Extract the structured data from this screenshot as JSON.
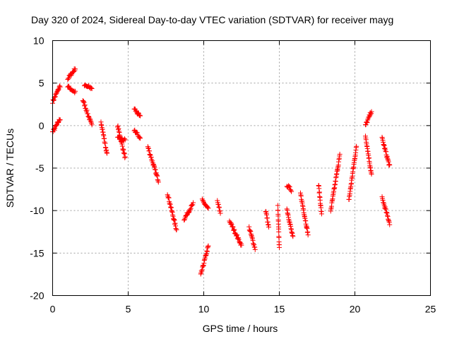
{
  "chart_data": {
    "type": "scatter",
    "title": "Day 320 of 2024, Sidereal Day-to-day VTEC variation (SDTVAR) for receiver mayg",
    "xlabel": "GPS time / hours",
    "ylabel": "SDTVAR / TECUs",
    "xlim": [
      0,
      25
    ],
    "ylim": [
      -20,
      10
    ],
    "xticks": [
      0,
      5,
      10,
      15,
      20,
      25
    ],
    "xtick_labels": [
      "0",
      "5",
      "10",
      "15",
      "20",
      "25"
    ],
    "yticks": [
      10,
      5,
      0,
      -5,
      -10,
      -15,
      -20
    ],
    "ytick_labels": [
      "10",
      "5",
      "0",
      "-5",
      "-10",
      "-15",
      "-20"
    ],
    "grid": true,
    "marker": "+",
    "color": "#ff0000",
    "series": [
      {
        "name": "SDTVAR",
        "segments": [
          {
            "x0": 0.0,
            "x1": 0.5,
            "y0": 2.8,
            "y1": 4.7
          },
          {
            "x0": 0.0,
            "x1": 0.5,
            "y0": -0.8,
            "y1": 0.8
          },
          {
            "x0": 1.0,
            "x1": 1.5,
            "y0": 5.5,
            "y1": 6.7
          },
          {
            "x0": 1.0,
            "x1": 1.5,
            "y0": 4.6,
            "y1": 3.9
          },
          {
            "x0": 2.1,
            "x1": 2.6,
            "y0": 4.7,
            "y1": 4.4
          },
          {
            "x0": 2.0,
            "x1": 2.6,
            "y0": 3.0,
            "y1": 0.0
          },
          {
            "x0": 3.2,
            "x1": 3.6,
            "y0": 0.5,
            "y1": -3.4
          },
          {
            "x0": 4.3,
            "x1": 4.8,
            "y0": 0.0,
            "y1": -3.8
          },
          {
            "x0": 4.3,
            "x1": 4.8,
            "y0": -1.5,
            "y1": -1.7
          },
          {
            "x0": 5.4,
            "x1": 5.8,
            "y0": 2.0,
            "y1": 1.0
          },
          {
            "x0": 5.4,
            "x1": 5.8,
            "y0": -0.5,
            "y1": -1.5
          },
          {
            "x0": 6.3,
            "x1": 7.0,
            "y0": -2.5,
            "y1": -6.5
          },
          {
            "x0": 7.6,
            "x1": 8.2,
            "y0": -8.0,
            "y1": -12.3
          },
          {
            "x0": 8.7,
            "x1": 9.3,
            "y0": -11.0,
            "y1": -9.2
          },
          {
            "x0": 9.9,
            "x1": 10.3,
            "y0": -8.8,
            "y1": -9.8
          },
          {
            "x0": 9.8,
            "x1": 10.3,
            "y0": -17.6,
            "y1": -14.2
          },
          {
            "x0": 10.9,
            "x1": 11.1,
            "y0": -8.9,
            "y1": -10.3
          },
          {
            "x0": 11.7,
            "x1": 12.5,
            "y0": -11.2,
            "y1": -14.1
          },
          {
            "x0": 13.0,
            "x1": 13.4,
            "y0": -12.0,
            "y1": -14.5
          },
          {
            "x0": 14.1,
            "x1": 14.3,
            "y0": -10.0,
            "y1": -12.0
          },
          {
            "x0": 14.9,
            "x1": 15.0,
            "y0": -9.5,
            "y1": -14.5
          },
          {
            "x0": 15.5,
            "x1": 15.8,
            "y0": -7.0,
            "y1": -7.6
          },
          {
            "x0": 15.5,
            "x1": 15.9,
            "y0": -9.8,
            "y1": -13.2
          },
          {
            "x0": 16.4,
            "x1": 16.9,
            "y0": -8.0,
            "y1": -12.8
          },
          {
            "x0": 17.6,
            "x1": 17.8,
            "y0": -7.0,
            "y1": -10.5
          },
          {
            "x0": 18.4,
            "x1": 19.0,
            "y0": -10.0,
            "y1": -3.5
          },
          {
            "x0": 19.6,
            "x1": 20.1,
            "y0": -8.8,
            "y1": -2.5
          },
          {
            "x0": 20.7,
            "x1": 21.1,
            "y0": -1.2,
            "y1": -5.8
          },
          {
            "x0": 20.7,
            "x1": 21.1,
            "y0": 0.0,
            "y1": 1.7
          },
          {
            "x0": 21.8,
            "x1": 22.3,
            "y0": -1.5,
            "y1": -4.8
          },
          {
            "x0": 21.8,
            "x1": 22.3,
            "y0": -8.5,
            "y1": -11.5
          }
        ]
      }
    ]
  }
}
